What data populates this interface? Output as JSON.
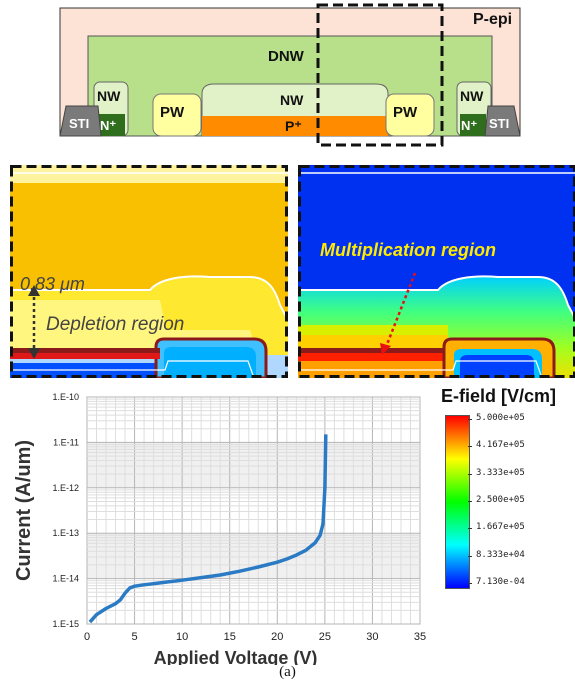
{
  "device": {
    "labels": {
      "pepi": "P-epi",
      "dnw": "DNW",
      "nw_left": "NW",
      "nw_center": "NW",
      "nw_right": "NW",
      "pw_left": "PW",
      "pw_right": "PW",
      "pplus": "P⁺",
      "nplus_left": "N⁺",
      "nplus_right": "N⁺",
      "sti_left": "STI",
      "sti_right": "STI"
    },
    "colors": {
      "pepi": "#fde3d6",
      "dnw": "#b8e08a",
      "nw": "#e2f2c8",
      "pw": "#ffffa0",
      "pplus": "#ff8c00",
      "nplus": "#2f6e1c",
      "sti": "#7a7a7a"
    }
  },
  "sim_left": {
    "depth_label": "0.83 μm",
    "depletion_label": "Depletion region"
  },
  "sim_right": {
    "multiplication_label": "Multiplication region"
  },
  "colorbar": {
    "title": "E-field [V/cm]",
    "ticks": [
      "5.000e+05",
      "4.167e+05",
      "3.333e+05",
      "2.500e+05",
      "1.667e+05",
      "8.333e+04",
      "7.130e-04"
    ],
    "colors": [
      "#ff0000",
      "#ffff00",
      "#00ff00",
      "#00ffff",
      "#0000ff"
    ]
  },
  "chart_data": {
    "type": "line",
    "xlabel": "Applied Voltage (V)",
    "ylabel": "Current (A/um)",
    "xlim": [
      0,
      35
    ],
    "x_ticks": [
      0,
      5,
      10,
      15,
      20,
      25,
      30,
      35
    ],
    "y_scale": "log",
    "ylim": [
      1e-15,
      1e-10
    ],
    "y_ticks": [
      1e-15,
      1e-14,
      1e-13,
      1e-12,
      1e-11,
      1e-10
    ],
    "y_tick_labels": [
      "1.E-15",
      "1.E-14",
      "1.E-13",
      "1.E-12",
      "1.E-11",
      "1.E-10"
    ],
    "grid": true,
    "line_color": "#2a7bc4",
    "series": [
      {
        "x": [
          0.3,
          1,
          2,
          3,
          3.5,
          4,
          4.5,
          5,
          6,
          8,
          10,
          12,
          14,
          16,
          18,
          20,
          21,
          22,
          23,
          24,
          24.5,
          24.8,
          25,
          25.1
        ],
        "y": [
          1.1e-15,
          1.6e-15,
          2.2e-15,
          2.8e-15,
          3.4e-15,
          4.8e-15,
          6.2e-15,
          6.8e-15,
          7.3e-15,
          8.2e-15,
          9.2e-15,
          1.05e-14,
          1.2e-14,
          1.45e-14,
          1.8e-14,
          2.3e-14,
          2.7e-14,
          3.3e-14,
          4.2e-14,
          6.2e-14,
          9e-14,
          1.6e-13,
          1e-12,
          1.5e-11
        ]
      }
    ]
  },
  "caption": "(a)"
}
